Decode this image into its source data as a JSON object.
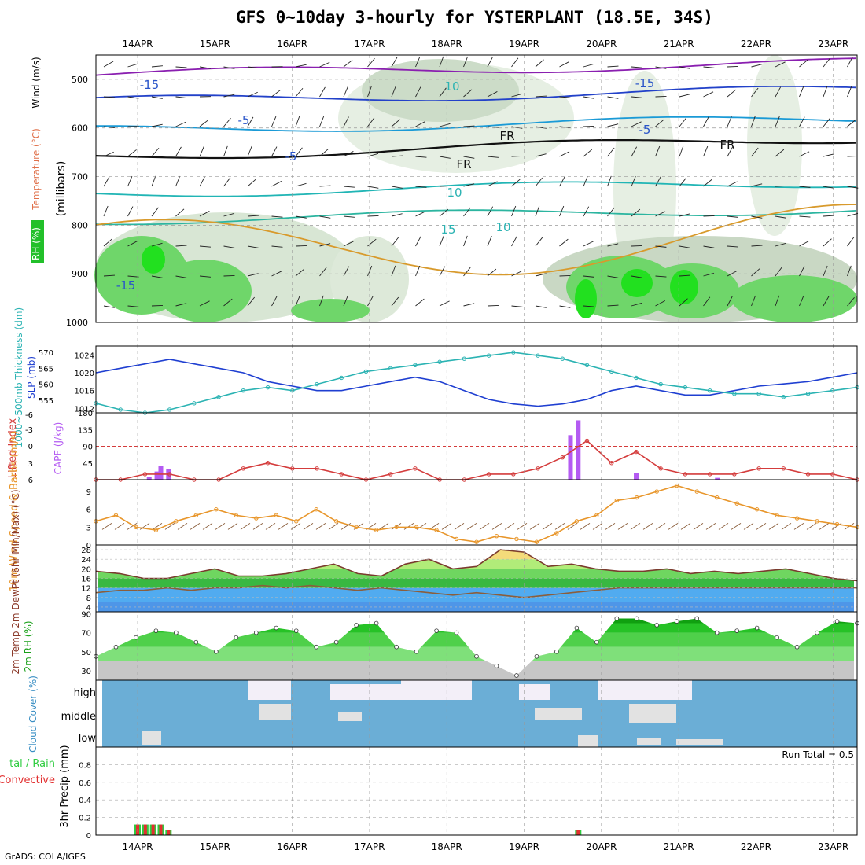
{
  "title": "GFS 0~10day 3-hourly for YSTERPLANT (18.5E, 34S)",
  "footer": "GrADS: COLA/IGES",
  "dates": [
    "14APR",
    "15APR",
    "16APR",
    "17APR",
    "18APR",
    "19APR",
    "20APR",
    "21APR",
    "22APR",
    "23APR"
  ],
  "colors": {
    "rh_green": "#2ecc40",
    "cloud_blue": "#6baed6",
    "slp": "#1f3fd1",
    "thick": "#2bb3b3",
    "li": "#d43c3c",
    "wind": "#e8962b",
    "temp": "#7a3b2e"
  },
  "chart_data": [
    {
      "type": "contour",
      "panel": "upper-air",
      "ylabel": "(millibars)",
      "side_labels": [
        "RH (%)",
        "Temperature (°C)",
        "Wind (m/s)"
      ],
      "yticks": [
        500,
        600,
        700,
        800,
        900,
        1000
      ],
      "ylim": [
        1000,
        450
      ],
      "contour_labels": [
        "-15",
        "10",
        "-15",
        "-5",
        "FR",
        "-5",
        "FR",
        "-5",
        "FR",
        "10",
        "-15",
        "10",
        "15"
      ],
      "temp_levels_mb": {
        "-15": 490,
        "-10": 545,
        "-5": 605,
        "FR": 660,
        "5": 735,
        "10": 790,
        "15": 850
      }
    },
    {
      "type": "line",
      "panel": "slp-thickness",
      "ylabel_left": "1000~500mb Thickness (dm)",
      "ylabel_right": "SLP (mb)",
      "yticks_left": [
        555,
        560,
        565,
        570
      ],
      "yticks_right": [
        1012,
        1016,
        1020,
        1024
      ],
      "series": [
        {
          "name": "SLP",
          "values": [
            1020,
            1021,
            1022,
            1023,
            1022,
            1021,
            1020,
            1018,
            1017,
            1016,
            1016,
            1017,
            1018,
            1019,
            1018,
            1016,
            1014,
            1013,
            1012.5,
            1013,
            1014,
            1016,
            1017,
            1016,
            1015,
            1015,
            1016,
            1017,
            1017.5,
            1018,
            1019,
            1020
          ]
        },
        {
          "name": "Thickness",
          "values": [
            554,
            552,
            551,
            552,
            554,
            556,
            558,
            559,
            558,
            560,
            562,
            564,
            565,
            566,
            567,
            568,
            569,
            570,
            569,
            568,
            566,
            564,
            562,
            560,
            559,
            558,
            557,
            557,
            556,
            557,
            558,
            559
          ]
        }
      ]
    },
    {
      "type": "bar",
      "panel": "cape-li",
      "ylabel_left": "Lifted Index",
      "ylabel_right": "CAPE (J/kg)",
      "yticks_left": [
        "6",
        "3",
        "0",
        "-3",
        "-6"
      ],
      "yticks_right": [
        45,
        90,
        135,
        180
      ],
      "cape": [
        {
          "day": 0.15,
          "v": 8
        },
        {
          "day": 0.25,
          "v": 22
        },
        {
          "day": 0.3,
          "v": 38
        },
        {
          "day": 0.4,
          "v": 28
        },
        {
          "day": 5.6,
          "v": 120
        },
        {
          "day": 5.7,
          "v": 160
        },
        {
          "day": 6.45,
          "v": 18
        },
        {
          "day": 7.5,
          "v": 5
        }
      ],
      "lifted_index": [
        6,
        6,
        5,
        5,
        6,
        6,
        4,
        3,
        4,
        4,
        5,
        6,
        5,
        4,
        6,
        6,
        5,
        5,
        4,
        2,
        -1,
        3,
        1,
        4,
        5,
        5,
        5,
        4,
        4,
        5,
        5,
        6
      ]
    },
    {
      "type": "line",
      "panel": "wind10m",
      "ylabel": "10m Wind Speed & Barbs (m/s)",
      "yticks": [
        0,
        3,
        6,
        9
      ],
      "values": [
        4,
        5,
        3,
        2.5,
        4,
        5,
        6,
        5,
        4.5,
        5,
        4,
        6,
        4,
        3,
        2.5,
        3,
        3,
        2.5,
        1,
        0.5,
        1.5,
        1,
        0.5,
        2,
        4,
        5,
        7.5,
        8,
        9,
        10,
        9,
        8,
        7,
        6,
        5,
        4.5,
        4,
        3.5,
        3
      ]
    },
    {
      "type": "area",
      "panel": "temp2m",
      "ylabel": "2m Temp 2m DewPt (6hr Min/Max) (°C)",
      "yticks": [
        4,
        8,
        12,
        16,
        20,
        24,
        28
      ],
      "temp": [
        19,
        18,
        16,
        16,
        18,
        20,
        17,
        17,
        18,
        20,
        22,
        18,
        17,
        22,
        24,
        20,
        21,
        28,
        27,
        21,
        22,
        20,
        19,
        19,
        20,
        18,
        19,
        18,
        19,
        20,
        18,
        16,
        15
      ],
      "dewpt": [
        10,
        11,
        11,
        12,
        11,
        12,
        12,
        13,
        12,
        13,
        12,
        11,
        12,
        11,
        10,
        9,
        10,
        9,
        8,
        9,
        10,
        11,
        12,
        12,
        12,
        12,
        12,
        12,
        12,
        12,
        12,
        12,
        12
      ]
    },
    {
      "type": "area",
      "panel": "rh2m",
      "ylabel": "2m RH (%)",
      "yticks": [
        30,
        50,
        70,
        90
      ],
      "values": [
        45,
        55,
        65,
        72,
        70,
        60,
        50,
        65,
        70,
        75,
        72,
        55,
        60,
        78,
        80,
        55,
        50,
        72,
        70,
        45,
        35,
        25,
        45,
        50,
        75,
        60,
        85,
        85,
        78,
        82,
        85,
        70,
        72,
        75,
        65,
        55,
        70,
        82,
        80
      ]
    },
    {
      "type": "heatmap",
      "panel": "cloud",
      "ylabel": "Cloud Cover (%)",
      "rows": [
        "high",
        "middle",
        "low"
      ]
    },
    {
      "type": "bar",
      "panel": "precip",
      "ylabel": "3hr Precip (mm)",
      "side_label": "Total / Rain Convective",
      "yticks": [
        0,
        0.2,
        0.4,
        0.6,
        0.8
      ],
      "run_total": "Run Total = 0.5",
      "values": [
        {
          "day": 0.0,
          "v": 0.12
        },
        {
          "day": 0.1,
          "v": 0.12
        },
        {
          "day": 0.2,
          "v": 0.12
        },
        {
          "day": 0.3,
          "v": 0.12
        },
        {
          "day": 0.4,
          "v": 0.06
        },
        {
          "day": 5.7,
          "v": 0.06
        }
      ]
    }
  ]
}
